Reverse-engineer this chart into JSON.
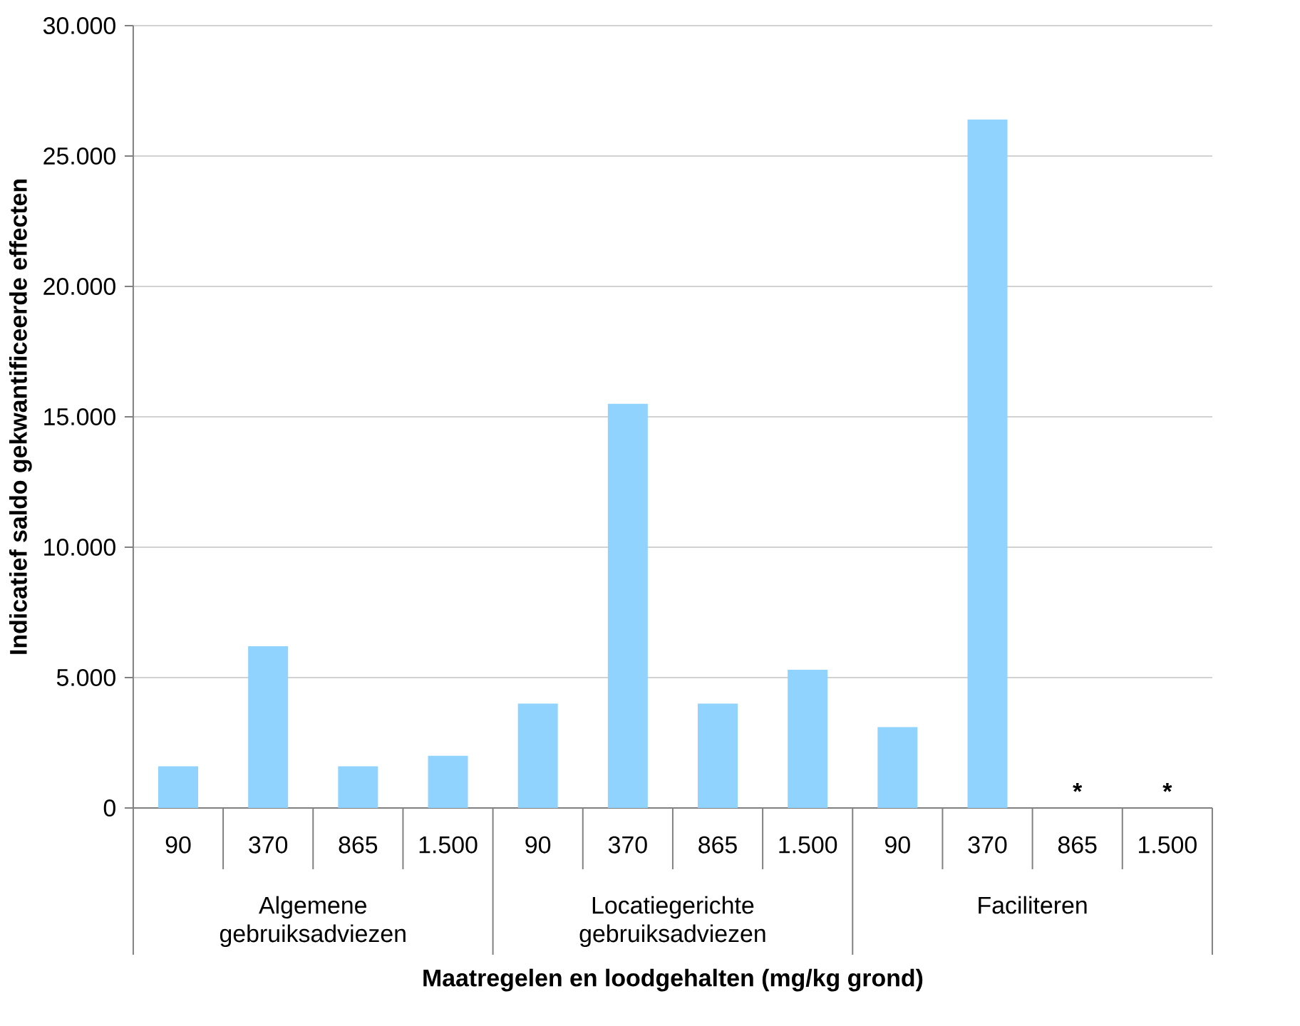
{
  "chart_data": {
    "type": "bar",
    "xlabel": "Maatregelen en loodgehalten (mg/kg grond)",
    "ylabel": "Indicatief saldo gekwantificeerde effecten",
    "categories": [
      "90",
      "370",
      "865",
      "1.500",
      "90",
      "370",
      "865",
      "1.500",
      "90",
      "370",
      "865",
      "1.500"
    ],
    "values": [
      1600,
      6200,
      1600,
      2000,
      4000,
      15500,
      4000,
      5300,
      3100,
      26400,
      null,
      null
    ],
    "value_labels": [
      null,
      null,
      null,
      null,
      null,
      null,
      null,
      null,
      null,
      null,
      "*",
      "*"
    ],
    "color": "#8fd3fe",
    "ylim": [
      0,
      30000
    ],
    "yticks": [
      {
        "value": 0,
        "label": "0"
      },
      {
        "value": 5000,
        "label": "5.000"
      },
      {
        "value": 10000,
        "label": "10.000"
      },
      {
        "value": 15000,
        "label": "15.000"
      },
      {
        "value": 20000,
        "label": "20.000"
      },
      {
        "value": 25000,
        "label": "25.000"
      },
      {
        "value": 30000,
        "label": "30.000"
      }
    ],
    "grid": "y",
    "annotations": [
      "Algemene gebruiksadviezen",
      "Locatiegerichte gebruiksadviezen",
      "Faciliteren"
    ]
  }
}
